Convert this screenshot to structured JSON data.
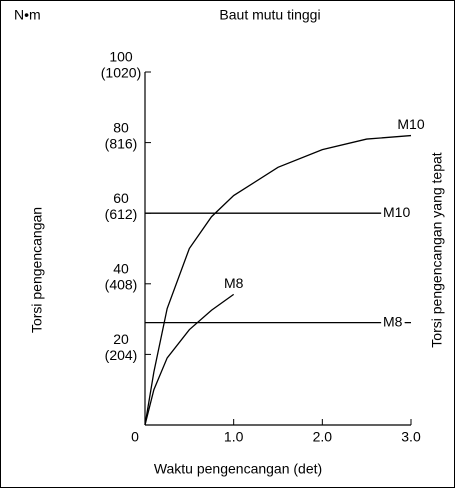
{
  "chart_data": {
    "type": "line",
    "title": "Baut mutu tinggi",
    "unit_label": "N•m",
    "ylabel": "Torsi pengencangan",
    "y2label": "Torsi pengencangan yang tepat",
    "xlabel": "Waktu pengencangan (det)",
    "xlim": [
      0,
      3
    ],
    "ylim": [
      0,
      100
    ],
    "xticks": [
      0,
      {
        "value": 1,
        "label": "1.0"
      },
      {
        "value": 2,
        "label": "2.0"
      },
      {
        "value": 3,
        "label": "3.0"
      }
    ],
    "yticks": [
      {
        "value": 20,
        "label": "20",
        "sublabel": "(204)"
      },
      {
        "value": 40,
        "label": "40",
        "sublabel": "(408)"
      },
      {
        "value": 60,
        "label": "60",
        "sublabel": "(612)"
      },
      {
        "value": 80,
        "label": "80",
        "sublabel": "(816)"
      },
      {
        "value": 100,
        "label": "100",
        "sublabel": "(1020)"
      }
    ],
    "color": "#000000",
    "series": [
      {
        "name": "M10",
        "x": [
          0,
          0.1,
          0.25,
          0.5,
          0.75,
          1,
          1.5,
          2,
          2.5,
          3
        ],
        "values": [
          0,
          15,
          33,
          50,
          59,
          65,
          73,
          78,
          81,
          82
        ]
      },
      {
        "name": "M10",
        "x": [
          0,
          3
        ],
        "values": [
          60,
          60
        ]
      },
      {
        "name": "M8",
        "x": [
          0,
          0.1,
          0.25,
          0.5,
          0.75,
          1
        ],
        "values": [
          0,
          10,
          19,
          27,
          32.5,
          37
        ]
      },
      {
        "name": "M8",
        "x": [
          0,
          3
        ],
        "values": [
          29,
          29
        ]
      }
    ]
  }
}
